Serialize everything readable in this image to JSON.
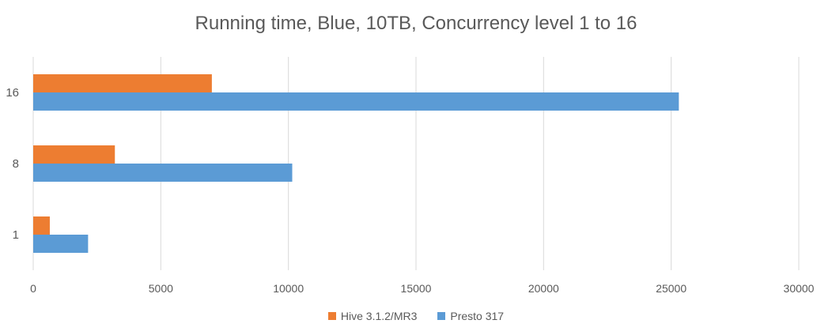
{
  "chart_data": {
    "type": "bar",
    "orientation": "horizontal",
    "title": "Running time, Blue, 10TB, Concurrency level 1 to 16",
    "xlabel": "",
    "ylabel": "",
    "categories": [
      "1",
      "8",
      "16"
    ],
    "series": [
      {
        "name": "Hive 3.1.2/MR3",
        "color": "#ED7D31",
        "values": [
          650,
          3200,
          7000
        ]
      },
      {
        "name": "Presto 317",
        "color": "#5B9BD5",
        "values": [
          2150,
          10150,
          25300
        ]
      }
    ],
    "xlim": [
      0,
      30000
    ],
    "xticks": [
      "0",
      "5000",
      "10000",
      "15000",
      "20000",
      "25000",
      "30000"
    ],
    "grid": true,
    "legend_position": "bottom"
  }
}
